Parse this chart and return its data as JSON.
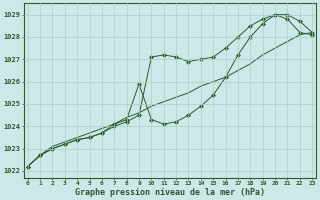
{
  "x": [
    0,
    1,
    2,
    3,
    4,
    5,
    6,
    7,
    8,
    9,
    10,
    11,
    12,
    13,
    14,
    15,
    16,
    17,
    18,
    19,
    20,
    21,
    22,
    23
  ],
  "line1": [
    1022.2,
    1022.7,
    1023.0,
    1023.2,
    1023.4,
    1023.5,
    1023.7,
    1024.0,
    1024.2,
    1024.5,
    1027.1,
    1027.2,
    1027.1,
    1026.9,
    1027.0,
    1027.1,
    1027.5,
    1028.0,
    1028.5,
    1028.8,
    1029.0,
    1029.0,
    1028.7,
    1028.2
  ],
  "line2": [
    1022.2,
    1022.7,
    1023.0,
    1023.2,
    1023.4,
    1023.5,
    1023.7,
    1024.1,
    1024.3,
    1025.9,
    1024.3,
    1024.1,
    1024.2,
    1024.5,
    1024.9,
    1025.4,
    1026.2,
    1027.2,
    1028.0,
    1028.6,
    1029.0,
    1028.8,
    1028.2,
    1028.1
  ],
  "line3": [
    1022.2,
    1022.7,
    1023.1,
    1023.3,
    1023.5,
    1023.7,
    1023.9,
    1024.1,
    1024.4,
    1024.6,
    1024.9,
    1025.1,
    1025.3,
    1025.5,
    1025.8,
    1026.0,
    1026.2,
    1026.5,
    1026.8,
    1027.2,
    1027.5,
    1027.8,
    1028.1,
    1028.2
  ],
  "bg_color": "#cce8e8",
  "grid_color": "#a8d0c8",
  "line_color": "#2d5a2d",
  "text_color": "#2d5a2d",
  "xlabel_label": "Graphe pression niveau de la mer (hPa)",
  "marker": "D",
  "markersize": 2.0
}
